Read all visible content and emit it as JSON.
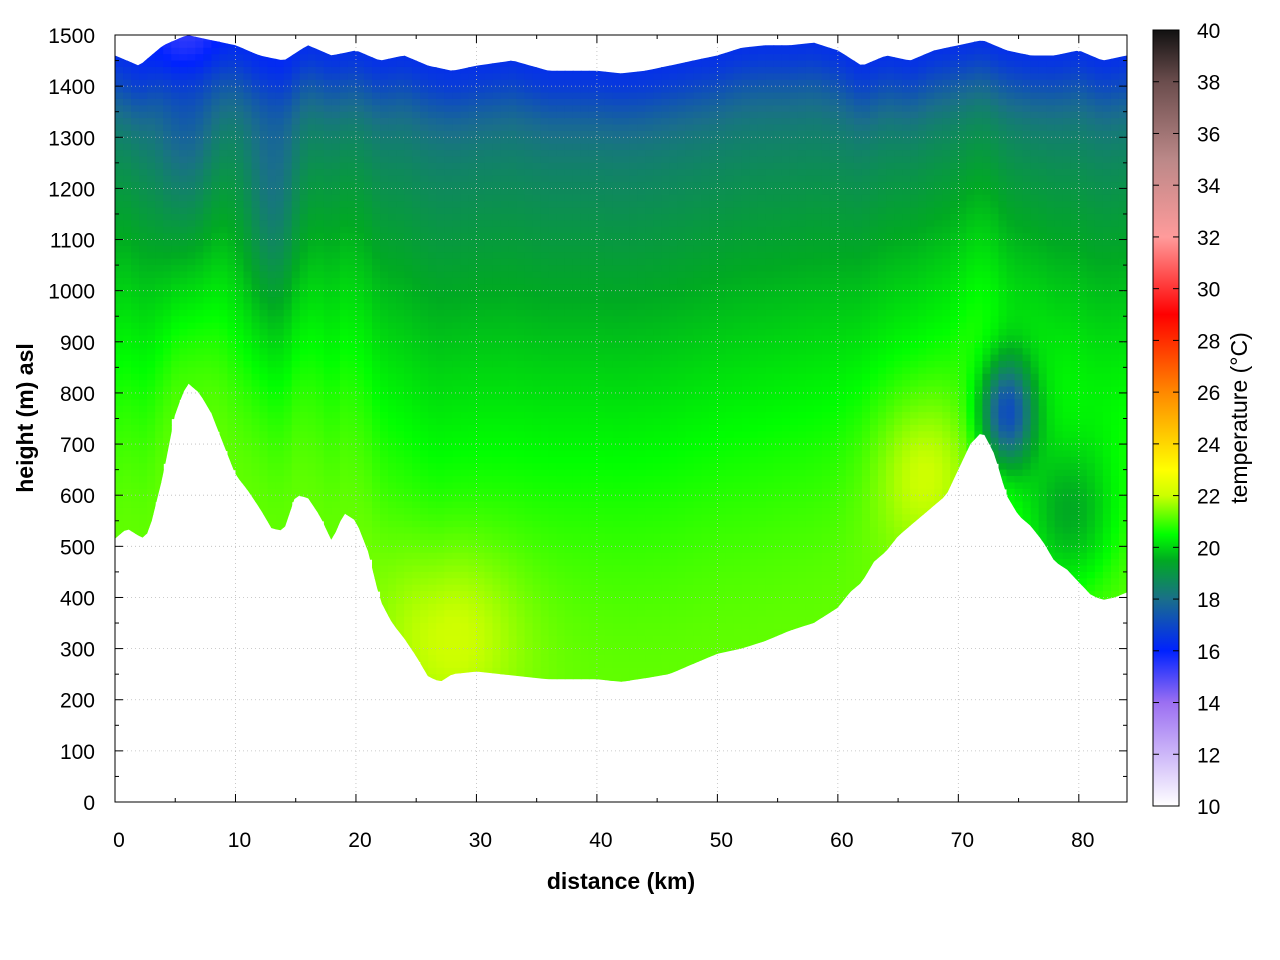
{
  "chart_data": {
    "type": "heatmap",
    "title": "",
    "xlabel": "distance (km)",
    "ylabel": "height (m) asl",
    "xlim": [
      0,
      84
    ],
    "ylim": [
      0,
      1500
    ],
    "x_ticks": [
      0,
      10,
      20,
      30,
      40,
      50,
      60,
      70,
      80
    ],
    "y_ticks": [
      0,
      100,
      200,
      300,
      400,
      500,
      600,
      700,
      800,
      900,
      1000,
      1100,
      1200,
      1300,
      1400,
      1500
    ],
    "grid": true,
    "colorbar": {
      "label": "temperature (°C)",
      "range": [
        10,
        40
      ],
      "ticks": [
        10,
        12,
        14,
        16,
        18,
        20,
        22,
        24,
        26,
        28,
        30,
        32,
        34,
        36,
        38,
        40
      ],
      "colormap": [
        {
          "value": 10,
          "color": "#ffffff"
        },
        {
          "value": 14,
          "color": "#9b6ff2"
        },
        {
          "value": 16,
          "color": "#0022ff"
        },
        {
          "value": 18,
          "color": "#1a6f8a"
        },
        {
          "value": 19.5,
          "color": "#00aa22"
        },
        {
          "value": 20.5,
          "color": "#00ff00"
        },
        {
          "value": 22,
          "color": "#ccff00"
        },
        {
          "value": 23,
          "color": "#ffff00"
        },
        {
          "value": 26,
          "color": "#ff8800"
        },
        {
          "value": 29,
          "color": "#ff0000"
        },
        {
          "value": 32,
          "color": "#ff9b9b"
        },
        {
          "value": 35,
          "color": "#bb8888"
        },
        {
          "value": 38,
          "color": "#6b4d4d"
        },
        {
          "value": 40,
          "color": "#111111"
        }
      ]
    },
    "terrain_profile": {
      "x": [
        0,
        1,
        2,
        2.5,
        3,
        4,
        5,
        6,
        7,
        8,
        9,
        10,
        11,
        12,
        13,
        14,
        15,
        16,
        17,
        18,
        19,
        20,
        21,
        22,
        23,
        24,
        25,
        26,
        27,
        28,
        30,
        32,
        34,
        36,
        38,
        40,
        42,
        44,
        46,
        48,
        50,
        52,
        54,
        56,
        58,
        60,
        61,
        62,
        63,
        64,
        65,
        66,
        67,
        68,
        69,
        70,
        71,
        72,
        73,
        74,
        75,
        76,
        77,
        78,
        79,
        80,
        81,
        82,
        83,
        84
      ],
      "height": [
        515,
        535,
        520,
        515,
        545,
        640,
        760,
        820,
        800,
        760,
        700,
        640,
        610,
        575,
        535,
        530,
        600,
        595,
        560,
        510,
        565,
        550,
        490,
        395,
        350,
        320,
        285,
        245,
        235,
        250,
        255,
        250,
        245,
        240,
        240,
        240,
        235,
        242,
        250,
        270,
        290,
        300,
        315,
        335,
        350,
        380,
        410,
        430,
        470,
        490,
        520,
        540,
        560,
        580,
        600,
        650,
        700,
        725,
        680,
        600,
        560,
        540,
        510,
        470,
        455,
        430,
        405,
        395,
        400,
        410
      ]
    },
    "cap_profile": {
      "x": [
        0,
        2,
        4,
        6,
        8,
        10,
        12,
        14,
        16,
        18,
        20,
        22,
        24,
        26,
        28,
        30,
        33,
        36,
        40,
        42,
        44,
        46,
        48,
        50,
        52,
        54,
        56,
        58,
        60,
        62,
        64,
        66,
        68,
        70,
        72,
        74,
        76,
        78,
        80,
        82,
        84
      ],
      "height": [
        1460,
        1440,
        1480,
        1500,
        1490,
        1480,
        1460,
        1450,
        1480,
        1460,
        1470,
        1450,
        1460,
        1440,
        1430,
        1440,
        1450,
        1430,
        1430,
        1425,
        1430,
        1440,
        1450,
        1460,
        1475,
        1480,
        1480,
        1485,
        1470,
        1440,
        1460,
        1450,
        1470,
        1480,
        1490,
        1470,
        1460,
        1460,
        1470,
        1450,
        1460
      ]
    },
    "temperature_field_notes": [
      "Cool layer (16-18 °C) along the top of the section between 1300 and 1500 m",
      "Mostly 19-21 °C green interior between 400 and 1200 m",
      "Warmest values (~22 °C) near the valley floor around 28 km and 67-70 km",
      "Cold pocket (~16-17 °C) in the lee of the ridge near 72-76 km between 650 and 850 m"
    ]
  }
}
